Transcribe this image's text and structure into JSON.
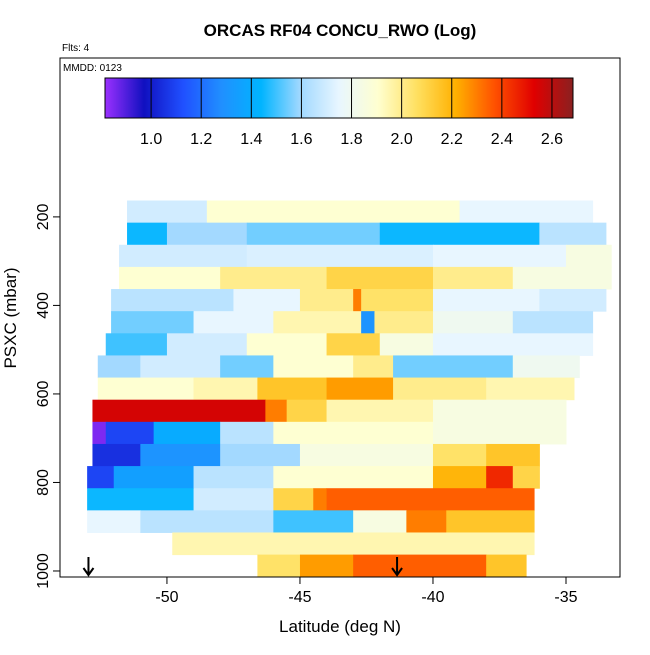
{
  "chart_data": {
    "type": "heatmap",
    "title": "ORCAS RF04 CONCU_RWO (Log)",
    "subtitle": "Flts: 4",
    "annotation": "MMDD: 0123",
    "x_label": "Latitude (deg N)",
    "y_label": "PSXC (mbar)",
    "xlim": [
      -54.02,
      -32.97
    ],
    "ylim": [
      1013.6,
      -159
    ],
    "xticks": [
      -50,
      -45,
      -40,
      -35
    ],
    "yticks": [
      200,
      400,
      600,
      800,
      1000
    ],
    "clim": [
      0.816,
      2.684
    ],
    "cticks": [
      {
        "value": 1.0,
        "label": "1.0"
      },
      1.2,
      1.4,
      1.6,
      1.8,
      {
        "value": 2.0,
        "label": "2.0"
      },
      2.2,
      2.4,
      2.6
    ],
    "colormap": [
      "#9b30ff",
      "#1010c0",
      "#2050ff",
      "#2090ff",
      "#00b4ff",
      "#a0d8ff",
      "#e8f6ff",
      "#ffffd0",
      "#ffe060",
      "#ffb000",
      "#ff5000",
      "#e00000",
      "#8b2020"
    ],
    "markers_x": [
      -52.95,
      -41.35
    ],
    "rows": [
      {
        "y": 188,
        "x": [
          -51.5,
          -48.5,
          -39,
          -34
        ],
        "values": [
          1.7,
          1.9,
          1.75
        ]
      },
      {
        "y": 238,
        "x": [
          -51.5,
          -50,
          -47,
          -42,
          -36,
          -33.5
        ],
        "values": [
          1.45,
          1.6,
          1.55,
          1.45,
          1.65
        ]
      },
      {
        "y": 288,
        "x": [
          -51.8,
          -47,
          -40,
          -35,
          -33.3
        ],
        "values": [
          1.7,
          1.72,
          1.75,
          1.85
        ]
      },
      {
        "y": 338,
        "x": [
          -51.8,
          -48,
          -44,
          -40,
          -37,
          -33.3
        ],
        "values": [
          1.9,
          2.0,
          2.1,
          2.0,
          1.85
        ]
      },
      {
        "y": 388,
        "x": [
          -52.1,
          -47.5,
          -45,
          -43,
          -42.7,
          -40,
          -36,
          -33.5
        ],
        "values": [
          1.65,
          1.75,
          2.0,
          2.3,
          2.05,
          1.75,
          1.7
        ]
      },
      {
        "y": 438,
        "x": [
          -52.1,
          -49,
          -46,
          -42.7,
          -42.2,
          -40,
          -37,
          -34
        ],
        "values": [
          1.55,
          1.75,
          1.95,
          1.3,
          2.0,
          1.8,
          1.65
        ]
      },
      {
        "y": 488,
        "x": [
          -52.3,
          -50,
          -47,
          -44,
          -42,
          -40,
          -34
        ],
        "values": [
          1.5,
          1.7,
          1.9,
          2.1,
          1.85,
          1.75
        ]
      },
      {
        "y": 538,
        "x": [
          -52.6,
          -51,
          -48,
          -46,
          -43,
          -41.5,
          -37,
          -34.5
        ],
        "values": [
          1.6,
          1.7,
          1.55,
          1.9,
          2.0,
          1.55,
          1.8
        ]
      },
      {
        "y": 588,
        "x": [
          -52.6,
          -49,
          -46.6,
          -44,
          -41.5,
          -38,
          -34.7
        ],
        "values": [
          1.9,
          1.95,
          2.15,
          2.25,
          2.0,
          1.95
        ]
      },
      {
        "y": 638,
        "x": [
          -52.8,
          -46.3,
          -45.5,
          -44,
          -40,
          -35
        ],
        "values": [
          2.55,
          2.3,
          2.1,
          1.95,
          1.85
        ]
      },
      {
        "y": 688,
        "x": [
          -52.8,
          -52.3,
          -50.5,
          -48,
          -46,
          -40,
          -35
        ],
        "values": [
          0.85,
          1.1,
          1.4,
          1.65,
          1.9,
          1.85
        ]
      },
      {
        "y": 738,
        "x": [
          -52.8,
          -51,
          -48,
          -45,
          -40,
          -38,
          -36
        ],
        "values": [
          1.05,
          1.3,
          1.6,
          1.85,
          2.05,
          2.15
        ]
      },
      {
        "y": 788,
        "x": [
          -53,
          -52,
          -49,
          -46,
          -40,
          -38,
          -37,
          -36
        ],
        "values": [
          1.1,
          1.35,
          1.65,
          1.9,
          2.2,
          2.45,
          2.1
        ]
      },
      {
        "y": 838,
        "x": [
          -53,
          -49,
          -46,
          -44.5,
          -44,
          -36.2
        ],
        "values": [
          1.45,
          1.7,
          2.1,
          2.3,
          2.35
        ]
      },
      {
        "y": 888,
        "x": [
          -53,
          -51,
          -46,
          -43,
          -41,
          -39.5,
          -36.2
        ],
        "values": [
          1.75,
          1.65,
          1.5,
          1.85,
          2.3,
          2.15
        ]
      },
      {
        "y": 938,
        "x": [
          -49.8,
          -36.2
        ],
        "values": [
          1.95
        ]
      },
      {
        "y": 988,
        "x": [
          -46.6,
          -45,
          -43,
          -38,
          -36.5
        ],
        "values": [
          2.05,
          2.25,
          2.35,
          2.15
        ]
      }
    ]
  }
}
